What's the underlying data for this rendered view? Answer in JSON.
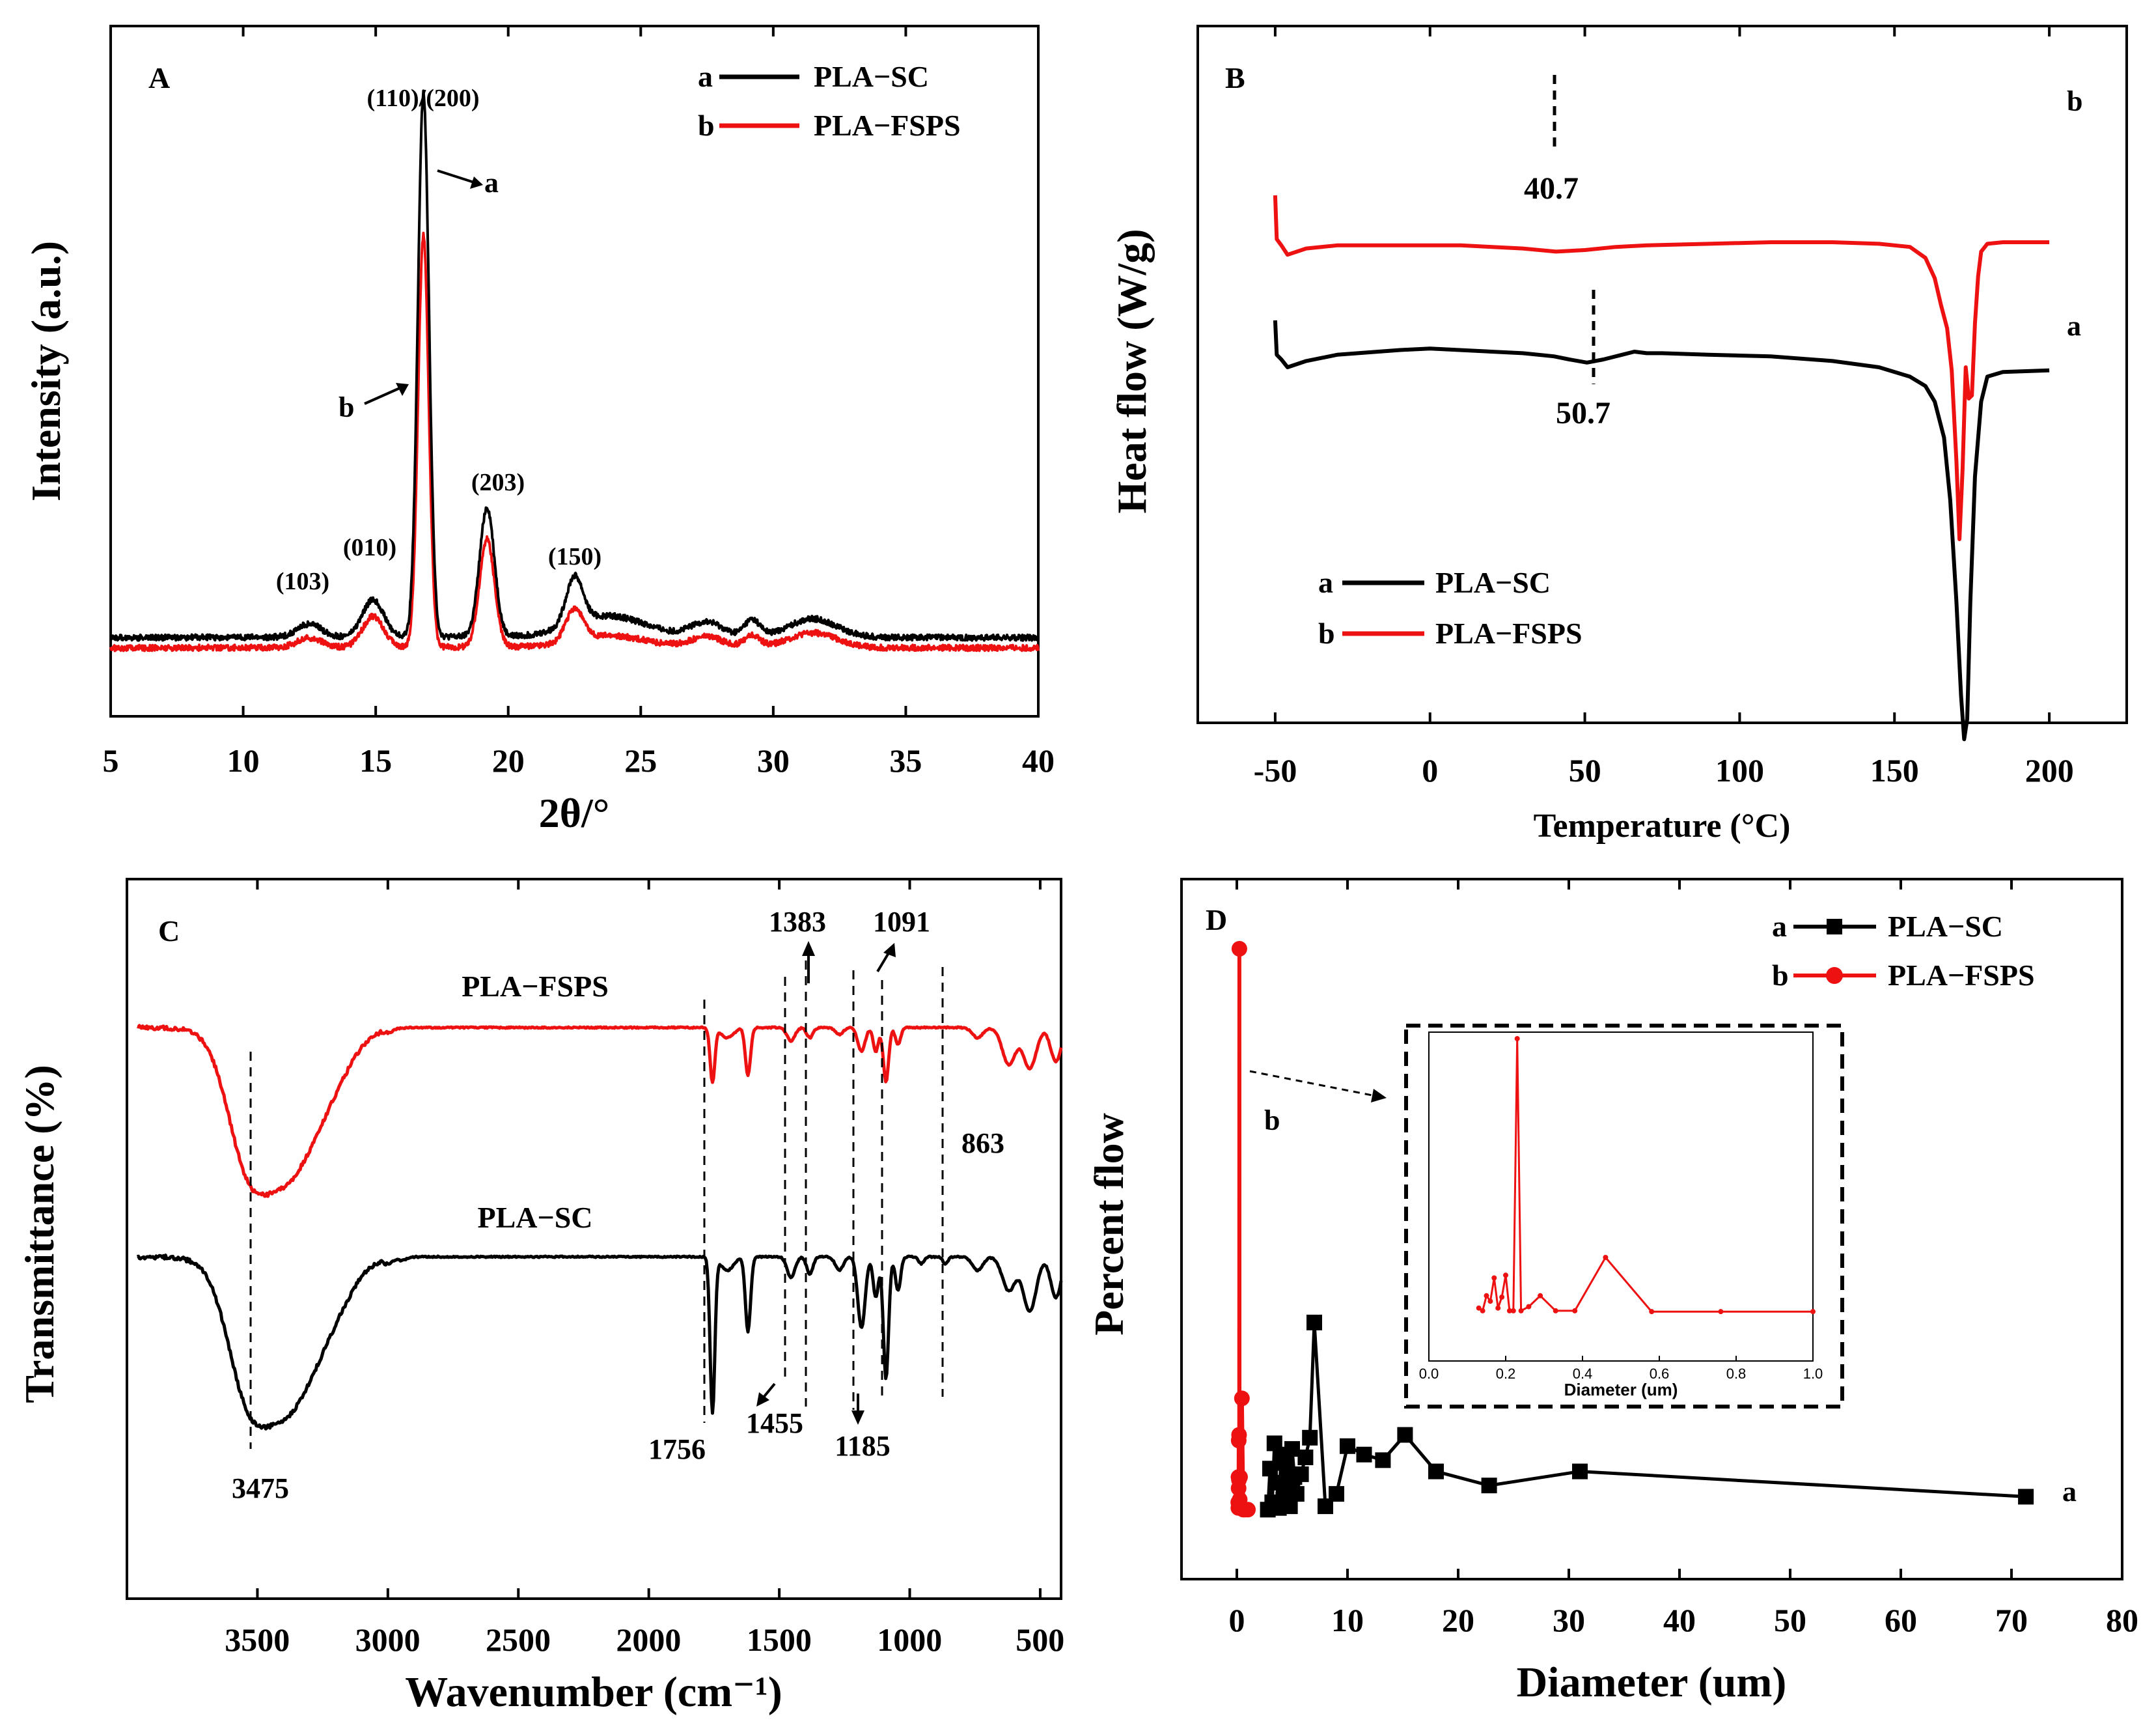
{
  "colors": {
    "sc": "#000000",
    "fsps": "#ee1111"
  },
  "chart_data": [
    {
      "id": "A",
      "type": "line",
      "panel_label": "A",
      "xlabel": "2θ/°",
      "ylabel": "Intensity (a.u.)",
      "xlim": [
        5,
        40
      ],
      "xticks": [
        "5",
        "10",
        "15",
        "20",
        "25",
        "30",
        "35",
        "40"
      ],
      "series": [
        {
          "key": "a",
          "name": "PLA−SC",
          "color": "#000000",
          "baseline": 0.07,
          "peaks": [
            [
              12.5,
              0.25,
              0.45
            ],
            [
              14.9,
              0.7,
              0.4
            ],
            [
              16.8,
              10.3,
              0.21
            ],
            [
              19.2,
              2.45,
              0.28
            ],
            [
              22.5,
              0.9,
              0.32
            ],
            [
              27.5,
              0.28,
              0.6
            ],
            [
              29.2,
              0.32,
              0.3
            ],
            [
              31.5,
              0.35,
              0.9
            ],
            [
              23.8,
              0.4,
              1.4
            ]
          ]
        },
        {
          "key": "b",
          "name": "PLA−FSPS",
          "color": "#ee1111",
          "baseline": 0.06,
          "peaks": [
            [
              12.5,
              0.18,
              0.45
            ],
            [
              14.9,
              0.58,
              0.4
            ],
            [
              16.8,
              7.8,
              0.2
            ],
            [
              19.2,
              2.05,
              0.28
            ],
            [
              22.5,
              0.6,
              0.32
            ],
            [
              27.5,
              0.2,
              0.6
            ],
            [
              29.2,
              0.22,
              0.3
            ],
            [
              31.5,
              0.28,
              0.9
            ],
            [
              23.8,
              0.22,
              1.4
            ]
          ]
        }
      ],
      "peak_labels": [
        {
          "text": "(110)/(200)",
          "x": 16.8
        },
        {
          "text": "(103)",
          "x": 12.5
        },
        {
          "text": "(010)",
          "x": 14.9
        },
        {
          "text": "(203)",
          "x": 19.2
        },
        {
          "text": "(150)",
          "x": 22.5
        }
      ],
      "curve_labels": [
        "a",
        "b"
      ]
    },
    {
      "id": "B",
      "type": "line",
      "panel_label": "B",
      "xlabel": "Temperature (°C)",
      "ylabel": "Heat flow (W/g)",
      "xlim": [
        -75,
        225
      ],
      "xticks": [
        "-50",
        "0",
        "50",
        "100",
        "150",
        "200"
      ],
      "series": [
        {
          "key": "a",
          "name": "PLA−SC",
          "color": "#000000",
          "x": [
            -50,
            -49.5,
            -48,
            -46,
            -40,
            -30,
            -10,
            0,
            10,
            30,
            40,
            45,
            50.7,
            56,
            62,
            66,
            70,
            75,
            90,
            110,
            130,
            145,
            155,
            160,
            163,
            166,
            168,
            170,
            171.5,
            172.5,
            173.5,
            174.5,
            176,
            178,
            180,
            185,
            200
          ],
          "y": [
            0.3,
            0.52,
            0.55,
            0.6,
            0.56,
            0.52,
            0.49,
            0.48,
            0.49,
            0.51,
            0.53,
            0.55,
            0.57,
            0.55,
            0.52,
            0.5,
            0.51,
            0.51,
            0.52,
            0.53,
            0.56,
            0.6,
            0.66,
            0.72,
            0.82,
            1.05,
            1.45,
            2.1,
            2.7,
            2.98,
            2.85,
            2.1,
            1.3,
            0.82,
            0.66,
            0.63,
            0.62
          ]
        },
        {
          "key": "b",
          "name": "PLA−FSPS",
          "color": "#ee1111",
          "x": [
            -50,
            -49.5,
            -48,
            -46,
            -40,
            -30,
            -10,
            0,
            10,
            20,
            30,
            40.7,
            50,
            60,
            70,
            90,
            110,
            130,
            145,
            155,
            160,
            163,
            165,
            167,
            168.5,
            170,
            171,
            172,
            173,
            174,
            175,
            176,
            177,
            178,
            180,
            185,
            200
          ],
          "y": [
            -0.5,
            -0.22,
            -0.18,
            -0.12,
            -0.16,
            -0.18,
            -0.18,
            -0.18,
            -0.18,
            -0.17,
            -0.16,
            -0.14,
            -0.15,
            -0.17,
            -0.18,
            -0.19,
            -0.2,
            -0.2,
            -0.19,
            -0.17,
            -0.1,
            0.03,
            0.2,
            0.35,
            0.62,
            1.2,
            1.7,
            1.25,
            0.6,
            0.8,
            0.78,
            0.32,
            0.02,
            -0.14,
            -0.19,
            -0.2,
            -0.2
          ]
        }
      ],
      "marks": [
        {
          "x": 40.7,
          "label": "40.7",
          "series": "b"
        },
        {
          "x": 50.7,
          "label": "50.7",
          "series": "a"
        }
      ],
      "curve_labels": [
        "a",
        "b"
      ]
    },
    {
      "id": "C",
      "type": "line",
      "panel_label": "C",
      "xlabel": "Wavenumber (cm⁻¹)",
      "ylabel": "Transmittance (%)",
      "xlim": [
        4000,
        420
      ],
      "x_reversed": true,
      "xticks": [
        "3500",
        "3000",
        "2500",
        "2000",
        "1500",
        "1000",
        "500"
      ],
      "series": [
        {
          "key": "a",
          "name": "PLA−SC",
          "color": "#000000",
          "bands": [
            [
              3400,
              0.46,
              130
            ],
            [
              3550,
              0.2,
              70
            ],
            [
              3200,
              0.06,
              80
            ],
            [
              2997,
              0.015,
              15
            ],
            [
              2945,
              0.01,
              15
            ],
            [
              1756,
              0.46,
              9
            ],
            [
              1700,
              0.04,
              25
            ],
            [
              1620,
              0.22,
              10
            ],
            [
              1455,
              0.06,
              15
            ],
            [
              1383,
              0.05,
              12
            ],
            [
              1270,
              0.04,
              15
            ],
            [
              1185,
              0.21,
              14
            ],
            [
              1130,
              0.12,
              10
            ],
            [
              1091,
              0.36,
              10
            ],
            [
              1045,
              0.1,
              10
            ],
            [
              956,
              0.02,
              10
            ],
            [
              863,
              0.02,
              10
            ],
            [
              740,
              0.04,
              20
            ],
            [
              620,
              0.1,
              25
            ],
            [
              540,
              0.16,
              25
            ],
            [
              440,
              0.12,
              20
            ]
          ]
        },
        {
          "key": "b",
          "name": "PLA−FSPS",
          "color": "#ee1111",
          "bands": [
            [
              3400,
              0.45,
              130
            ],
            [
              3550,
              0.2,
              70
            ],
            [
              3200,
              0.06,
              80
            ],
            [
              2997,
              0.01,
              15
            ],
            [
              1756,
              0.16,
              9
            ],
            [
              1700,
              0.03,
              25
            ],
            [
              1620,
              0.14,
              10
            ],
            [
              1455,
              0.04,
              15
            ],
            [
              1383,
              0.03,
              12
            ],
            [
              1270,
              0.02,
              15
            ],
            [
              1185,
              0.07,
              14
            ],
            [
              1130,
              0.07,
              10
            ],
            [
              1091,
              0.16,
              10
            ],
            [
              1045,
              0.05,
              10
            ],
            [
              740,
              0.03,
              20
            ],
            [
              620,
              0.11,
              25
            ],
            [
              540,
              0.12,
              25
            ],
            [
              440,
              0.1,
              20
            ]
          ]
        }
      ],
      "band_marks": [
        {
          "text": "3475",
          "x": 3475
        },
        {
          "text": "1756",
          "x": 1756
        },
        {
          "text": "1455",
          "x": 1455
        },
        {
          "text": "1383",
          "x": 1383
        },
        {
          "text": "1185",
          "x": 1185
        },
        {
          "text": "1091",
          "x": 1091
        },
        {
          "text": "863",
          "x": 863
        }
      ]
    },
    {
      "id": "D",
      "type": "line",
      "panel_label": "D",
      "xlabel": "Diameter (um)",
      "ylabel": "Percent flow",
      "xlim": [
        -5,
        80
      ],
      "xticks": [
        "0",
        "10",
        "20",
        "30",
        "40",
        "50",
        "60",
        "70",
        "80"
      ],
      "series": [
        {
          "key": "a",
          "name": "PLA−SC",
          "color": "#000000",
          "marker": "square",
          "x": [
            2.8,
            3.0,
            3.2,
            3.4,
            3.6,
            3.8,
            4.0,
            4.2,
            4.4,
            4.6,
            4.8,
            5.0,
            5.2,
            5.4,
            5.8,
            6.2,
            6.6,
            7.0,
            8.0,
            9.0,
            10.0,
            11.5,
            13.2,
            15.2,
            18.0,
            22.8,
            31.0,
            71.3
          ],
          "y": [
            0.2,
            7.5,
            1.5,
            12.0,
            5.0,
            0.5,
            10.0,
            2.0,
            8.5,
            4.0,
            0.8,
            11.0,
            6.0,
            3.0,
            6.5,
            9.5,
            13.0,
            33.5,
            0.8,
            3.0,
            11.5,
            10.0,
            9.0,
            13.5,
            7.0,
            4.5,
            7.0,
            2.5
          ]
        },
        {
          "key": "b",
          "name": "PLA−FSPS",
          "color": "#ee1111",
          "marker": "circle",
          "x": [
            0.13,
            0.14,
            0.15,
            0.16,
            0.17,
            0.18,
            0.19,
            0.2,
            0.21,
            0.22,
            0.23,
            0.24,
            0.26,
            0.29,
            0.33,
            0.38,
            0.46,
            0.58,
            0.76,
            1.0
          ],
          "y": [
            1.5,
            0.5,
            6.0,
            4.0,
            12.5,
            1.5,
            5.5,
            13.5,
            0.5,
            0.5,
            100.0,
            0.5,
            2.0,
            6.0,
            0.5,
            0.5,
            20.0,
            0.2,
            0.2,
            0.2
          ]
        }
      ],
      "inset": {
        "xlabel": "Diameter (um)",
        "xlim": [
          0,
          1
        ],
        "xticks": [
          "0.0",
          "0.2",
          "0.4",
          "0.6",
          "0.8",
          "1.0"
        ]
      },
      "curve_labels": [
        "a",
        "b"
      ]
    }
  ]
}
